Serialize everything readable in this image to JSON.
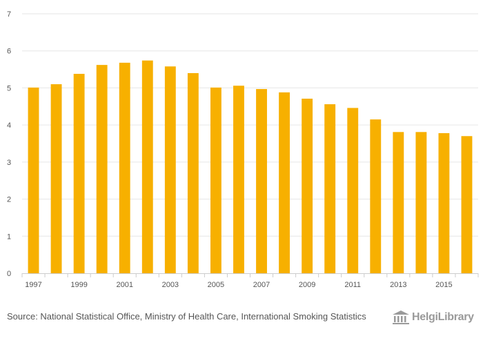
{
  "chart_data": {
    "type": "bar",
    "categories": [
      "1997",
      "1998",
      "1999",
      "2000",
      "2001",
      "2002",
      "2003",
      "2004",
      "2005",
      "2006",
      "2007",
      "2008",
      "2009",
      "2010",
      "2011",
      "2012",
      "2013",
      "2014",
      "2015",
      "2016"
    ],
    "values": [
      5.01,
      5.1,
      5.38,
      5.62,
      5.68,
      5.74,
      5.58,
      5.4,
      5.01,
      5.06,
      4.97,
      4.88,
      4.71,
      4.56,
      4.46,
      4.15,
      3.81,
      3.81,
      3.78,
      3.7
    ],
    "x_tick_labels": [
      "1997",
      "1999",
      "2001",
      "2003",
      "2005",
      "2007",
      "2009",
      "2011",
      "2013",
      "2015"
    ],
    "y_ticks": [
      0,
      1,
      2,
      3,
      4,
      5,
      6,
      7
    ],
    "ylim": [
      0,
      7
    ],
    "title": "",
    "xlabel": "",
    "ylabel": "",
    "bar_color": "#F7B000",
    "grid": true,
    "legend": "none"
  },
  "footer": {
    "source_text": "Source: National Statistical Office, Ministry of Health Care, International Smoking Statistics"
  },
  "logo": {
    "text": "HelgiLibrary",
    "icon": "library-building-icon"
  },
  "colors": {
    "bar": "#F7B000",
    "grid": "#e6e6e6",
    "axis": "#cccccc",
    "text": "#555555",
    "logo": "#9a9a9a"
  }
}
